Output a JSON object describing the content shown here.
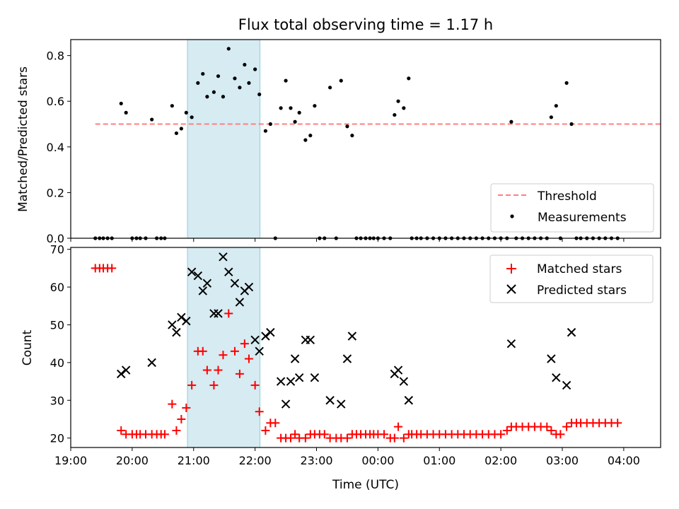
{
  "chart_data": [
    {
      "type": "scatter",
      "title": "Flux total observing time = 1.17 h",
      "xlabel": "",
      "ylabel": "Matched/Predicted stars",
      "xlim": [
        19.0,
        28.6
      ],
      "ylim": [
        0.0,
        0.87
      ],
      "yticks": [
        0.0,
        0.2,
        0.4,
        0.6,
        0.8
      ],
      "ytick_labels": [
        "0.0",
        "0.2",
        "0.4",
        "0.6",
        "0.8"
      ],
      "shaded_span": [
        20.9,
        22.08
      ],
      "threshold": {
        "name": "Threshold",
        "value": 0.5,
        "x_range": [
          19.4,
          28.9
        ],
        "color": "#ff7f7f"
      },
      "legend": {
        "position": "lower-right",
        "entries": [
          "Threshold",
          "Measurements"
        ]
      },
      "series": [
        {
          "name": "Measurements",
          "color": "#000000",
          "points": [
            [
              19.4,
              0
            ],
            [
              19.47,
              0
            ],
            [
              19.53,
              0
            ],
            [
              19.6,
              0
            ],
            [
              19.67,
              0
            ],
            [
              19.82,
              0.59
            ],
            [
              19.9,
              0.55
            ],
            [
              20.0,
              0
            ],
            [
              20.07,
              0
            ],
            [
              20.13,
              0
            ],
            [
              20.22,
              0
            ],
            [
              20.32,
              0.52
            ],
            [
              20.4,
              0
            ],
            [
              20.47,
              0
            ],
            [
              20.53,
              0
            ],
            [
              20.65,
              0.58
            ],
            [
              20.72,
              0.46
            ],
            [
              20.8,
              0.48
            ],
            [
              20.88,
              0.55
            ],
            [
              20.97,
              0.53
            ],
            [
              21.07,
              0.68
            ],
            [
              21.15,
              0.72
            ],
            [
              21.22,
              0.62
            ],
            [
              21.33,
              0.64
            ],
            [
              21.4,
              0.71
            ],
            [
              21.48,
              0.62
            ],
            [
              21.57,
              0.83
            ],
            [
              21.67,
              0.7
            ],
            [
              21.75,
              0.66
            ],
            [
              21.83,
              0.76
            ],
            [
              21.9,
              0.68
            ],
            [
              22.0,
              0.74
            ],
            [
              22.07,
              0.63
            ],
            [
              22.17,
              0.47
            ],
            [
              22.25,
              0.5
            ],
            [
              22.33,
              0
            ],
            [
              22.42,
              0.57
            ],
            [
              22.5,
              0.69
            ],
            [
              22.58,
              0.57
            ],
            [
              22.65,
              0.51
            ],
            [
              22.72,
              0.55
            ],
            [
              22.82,
              0.43
            ],
            [
              22.9,
              0.45
            ],
            [
              22.97,
              0.58
            ],
            [
              23.05,
              0
            ],
            [
              23.13,
              0
            ],
            [
              23.22,
              0.66
            ],
            [
              23.32,
              0
            ],
            [
              23.4,
              0.69
            ],
            [
              23.5,
              0.49
            ],
            [
              23.58,
              0.45
            ],
            [
              23.65,
              0
            ],
            [
              23.72,
              0
            ],
            [
              23.8,
              0
            ],
            [
              23.87,
              0
            ],
            [
              23.93,
              0
            ],
            [
              24.0,
              0
            ],
            [
              24.1,
              0
            ],
            [
              24.2,
              0
            ],
            [
              24.27,
              0.54
            ],
            [
              24.33,
              0.6
            ],
            [
              24.42,
              0.57
            ],
            [
              24.5,
              0.7
            ],
            [
              24.55,
              0
            ],
            [
              24.63,
              0
            ],
            [
              24.7,
              0
            ],
            [
              24.8,
              0
            ],
            [
              24.9,
              0
            ],
            [
              25.0,
              0
            ],
            [
              25.1,
              0
            ],
            [
              25.2,
              0
            ],
            [
              25.3,
              0
            ],
            [
              25.4,
              0
            ],
            [
              25.5,
              0
            ],
            [
              25.6,
              0
            ],
            [
              25.7,
              0
            ],
            [
              25.8,
              0
            ],
            [
              25.9,
              0
            ],
            [
              26.0,
              0
            ],
            [
              26.1,
              0
            ],
            [
              26.17,
              0.51
            ],
            [
              26.25,
              0
            ],
            [
              26.35,
              0
            ],
            [
              26.45,
              0
            ],
            [
              26.55,
              0
            ],
            [
              26.65,
              0
            ],
            [
              26.75,
              0
            ],
            [
              26.82,
              0.53
            ],
            [
              26.9,
              0.58
            ],
            [
              26.97,
              0
            ],
            [
              27.07,
              0.68
            ],
            [
              27.15,
              0.5
            ],
            [
              27.23,
              0
            ],
            [
              27.3,
              0
            ],
            [
              27.4,
              0
            ],
            [
              27.5,
              0
            ],
            [
              27.6,
              0
            ],
            [
              27.7,
              0
            ],
            [
              27.8,
              0
            ],
            [
              27.9,
              0
            ]
          ]
        }
      ]
    },
    {
      "type": "scatter",
      "title": "",
      "xlabel": "Time (UTC)",
      "ylabel": "Count",
      "xlim": [
        19.0,
        28.6
      ],
      "ylim": [
        17.5,
        70.5
      ],
      "yticks": [
        20,
        30,
        40,
        50,
        60,
        70
      ],
      "ytick_labels": [
        "20",
        "30",
        "40",
        "50",
        "60",
        "70"
      ],
      "xticks": [
        19,
        20,
        21,
        22,
        23,
        24,
        25,
        26,
        27,
        28
      ],
      "xtick_labels": [
        "19:00",
        "20:00",
        "21:00",
        "22:00",
        "23:00",
        "00:00",
        "01:00",
        "02:00",
        "03:00",
        "04:00"
      ],
      "shaded_span": [
        20.9,
        22.08
      ],
      "legend": {
        "position": "top-right",
        "entries": [
          "Matched stars",
          "Predicted stars"
        ]
      },
      "series": [
        {
          "name": "Matched stars",
          "marker": "plus",
          "color": "#ff0000",
          "points": [
            [
              19.4,
              65
            ],
            [
              19.47,
              65
            ],
            [
              19.53,
              65
            ],
            [
              19.6,
              65
            ],
            [
              19.67,
              65
            ],
            [
              19.82,
              22
            ],
            [
              19.9,
              21
            ],
            [
              20.0,
              21
            ],
            [
              20.07,
              21
            ],
            [
              20.13,
              21
            ],
            [
              20.22,
              21
            ],
            [
              20.32,
              21
            ],
            [
              20.4,
              21
            ],
            [
              20.47,
              21
            ],
            [
              20.53,
              21
            ],
            [
              20.65,
              29
            ],
            [
              20.72,
              22
            ],
            [
              20.8,
              25
            ],
            [
              20.88,
              28
            ],
            [
              20.97,
              34
            ],
            [
              21.07,
              43
            ],
            [
              21.15,
              43
            ],
            [
              21.22,
              38
            ],
            [
              21.33,
              34
            ],
            [
              21.4,
              38
            ],
            [
              21.48,
              42
            ],
            [
              21.57,
              53
            ],
            [
              21.67,
              43
            ],
            [
              21.75,
              37
            ],
            [
              21.83,
              45
            ],
            [
              21.9,
              41
            ],
            [
              22.0,
              34
            ],
            [
              22.07,
              27
            ],
            [
              22.17,
              22
            ],
            [
              22.25,
              24
            ],
            [
              22.33,
              24
            ],
            [
              22.42,
              20
            ],
            [
              22.5,
              20
            ],
            [
              22.58,
              20
            ],
            [
              22.65,
              21
            ],
            [
              22.72,
              20
            ],
            [
              22.82,
              20
            ],
            [
              22.9,
              21
            ],
            [
              22.97,
              21
            ],
            [
              23.05,
              21
            ],
            [
              23.13,
              21
            ],
            [
              23.22,
              20
            ],
            [
              23.32,
              20
            ],
            [
              23.4,
              20
            ],
            [
              23.5,
              20
            ],
            [
              23.58,
              21
            ],
            [
              23.65,
              21
            ],
            [
              23.72,
              21
            ],
            [
              23.8,
              21
            ],
            [
              23.87,
              21
            ],
            [
              23.93,
              21
            ],
            [
              24.0,
              21
            ],
            [
              24.1,
              21
            ],
            [
              24.2,
              20
            ],
            [
              24.27,
              20
            ],
            [
              24.33,
              23
            ],
            [
              24.42,
              20
            ],
            [
              24.5,
              21
            ],
            [
              24.55,
              21
            ],
            [
              24.63,
              21
            ],
            [
              24.7,
              21
            ],
            [
              24.8,
              21
            ],
            [
              24.9,
              21
            ],
            [
              25.0,
              21
            ],
            [
              25.1,
              21
            ],
            [
              25.2,
              21
            ],
            [
              25.3,
              21
            ],
            [
              25.4,
              21
            ],
            [
              25.5,
              21
            ],
            [
              25.6,
              21
            ],
            [
              25.7,
              21
            ],
            [
              25.8,
              21
            ],
            [
              25.9,
              21
            ],
            [
              26.0,
              21
            ],
            [
              26.1,
              22
            ],
            [
              26.17,
              23
            ],
            [
              26.25,
              23
            ],
            [
              26.35,
              23
            ],
            [
              26.45,
              23
            ],
            [
              26.55,
              23
            ],
            [
              26.65,
              23
            ],
            [
              26.75,
              23
            ],
            [
              26.82,
              22
            ],
            [
              26.9,
              21
            ],
            [
              26.97,
              21
            ],
            [
              27.07,
              23
            ],
            [
              27.15,
              24
            ],
            [
              27.23,
              24
            ],
            [
              27.3,
              24
            ],
            [
              27.4,
              24
            ],
            [
              27.5,
              24
            ],
            [
              27.6,
              24
            ],
            [
              27.7,
              24
            ],
            [
              27.8,
              24
            ],
            [
              27.9,
              24
            ]
          ]
        },
        {
          "name": "Predicted stars",
          "marker": "x",
          "color": "#000000",
          "points": [
            [
              19.82,
              37
            ],
            [
              19.9,
              38
            ],
            [
              20.32,
              40
            ],
            [
              20.65,
              50
            ],
            [
              20.72,
              48
            ],
            [
              20.8,
              52
            ],
            [
              20.88,
              51
            ],
            [
              20.97,
              64
            ],
            [
              21.07,
              63
            ],
            [
              21.15,
              59
            ],
            [
              21.22,
              61
            ],
            [
              21.33,
              53
            ],
            [
              21.4,
              53
            ],
            [
              21.48,
              68
            ],
            [
              21.57,
              64
            ],
            [
              21.67,
              61
            ],
            [
              21.75,
              56
            ],
            [
              21.83,
              59
            ],
            [
              21.9,
              60
            ],
            [
              22.0,
              46
            ],
            [
              22.07,
              43
            ],
            [
              22.17,
              47
            ],
            [
              22.25,
              48
            ],
            [
              22.42,
              35
            ],
            [
              22.5,
              29
            ],
            [
              22.58,
              35
            ],
            [
              22.65,
              41
            ],
            [
              22.72,
              36
            ],
            [
              22.82,
              46
            ],
            [
              22.9,
              46
            ],
            [
              22.97,
              36
            ],
            [
              23.22,
              30
            ],
            [
              23.4,
              29
            ],
            [
              23.5,
              41
            ],
            [
              23.58,
              47
            ],
            [
              24.27,
              37
            ],
            [
              24.33,
              38
            ],
            [
              24.42,
              35
            ],
            [
              24.5,
              30
            ],
            [
              26.17,
              45
            ],
            [
              26.82,
              41
            ],
            [
              26.9,
              36
            ],
            [
              27.07,
              34
            ],
            [
              27.15,
              48
            ]
          ]
        }
      ]
    }
  ]
}
